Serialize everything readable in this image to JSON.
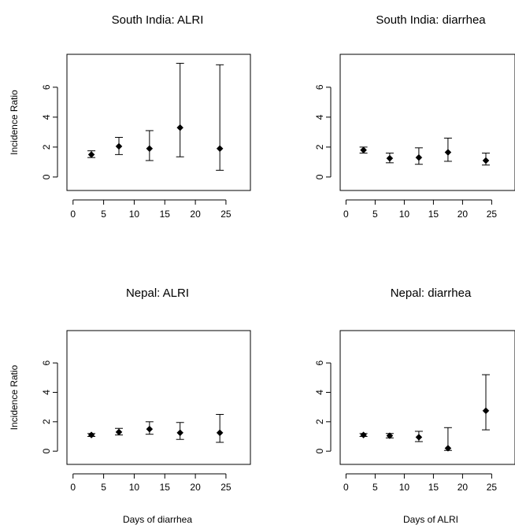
{
  "chart_data": [
    {
      "type": "scatter",
      "title": "South India: ALRI",
      "xlabel": "",
      "ylabel": "Incidence Ratio",
      "xlim": [
        -1,
        29
      ],
      "ylim": [
        -0.9,
        8.2
      ],
      "xticks": [
        0,
        5,
        10,
        15,
        20,
        25
      ],
      "yticks": [
        0,
        2,
        4,
        6
      ],
      "points": [
        {
          "x": 3,
          "y": 1.5,
          "lo": 1.3,
          "hi": 1.75
        },
        {
          "x": 7.5,
          "y": 2.05,
          "lo": 1.5,
          "hi": 2.65
        },
        {
          "x": 12.5,
          "y": 1.9,
          "lo": 1.1,
          "hi": 3.1
        },
        {
          "x": 17.5,
          "y": 3.3,
          "lo": 1.35,
          "hi": 7.6
        },
        {
          "x": 24,
          "y": 1.9,
          "lo": 0.45,
          "hi": 7.5
        }
      ]
    },
    {
      "type": "scatter",
      "title": "South India: diarrhea",
      "xlabel": "",
      "ylabel": "",
      "xlim": [
        -1,
        29
      ],
      "ylim": [
        -0.9,
        8.2
      ],
      "xticks": [
        0,
        5,
        10,
        15,
        20,
        25
      ],
      "yticks": [
        0,
        2,
        4,
        6
      ],
      "points": [
        {
          "x": 3,
          "y": 1.8,
          "lo": 1.6,
          "hi": 2.0
        },
        {
          "x": 7.5,
          "y": 1.25,
          "lo": 0.95,
          "hi": 1.6
        },
        {
          "x": 12.5,
          "y": 1.3,
          "lo": 0.85,
          "hi": 1.95
        },
        {
          "x": 17.5,
          "y": 1.65,
          "lo": 1.05,
          "hi": 2.6
        },
        {
          "x": 24,
          "y": 1.1,
          "lo": 0.8,
          "hi": 1.6
        }
      ]
    },
    {
      "type": "scatter",
      "title": "Nepal: ALRI",
      "xlabel": "Days of diarrhea",
      "ylabel": "Incidence Ratio",
      "xlim": [
        -1,
        29
      ],
      "ylim": [
        -0.9,
        8.2
      ],
      "xticks": [
        0,
        5,
        10,
        15,
        20,
        25
      ],
      "yticks": [
        0,
        2,
        4,
        6
      ],
      "points": [
        {
          "x": 3,
          "y": 1.1,
          "lo": 1.0,
          "hi": 1.2
        },
        {
          "x": 7.5,
          "y": 1.3,
          "lo": 1.1,
          "hi": 1.55
        },
        {
          "x": 12.5,
          "y": 1.5,
          "lo": 1.15,
          "hi": 2.0
        },
        {
          "x": 17.5,
          "y": 1.25,
          "lo": 0.8,
          "hi": 1.95
        },
        {
          "x": 24,
          "y": 1.25,
          "lo": 0.6,
          "hi": 2.5
        }
      ]
    },
    {
      "type": "scatter",
      "title": "Nepal: diarrhea",
      "xlabel": "Days of ALRI",
      "ylabel": "",
      "xlim": [
        -1,
        29
      ],
      "ylim": [
        -0.9,
        8.2
      ],
      "xticks": [
        0,
        5,
        10,
        15,
        20,
        25
      ],
      "yticks": [
        0,
        2,
        4,
        6
      ],
      "points": [
        {
          "x": 3,
          "y": 1.1,
          "lo": 1.0,
          "hi": 1.2
        },
        {
          "x": 7.5,
          "y": 1.05,
          "lo": 0.9,
          "hi": 1.2
        },
        {
          "x": 12.5,
          "y": 0.95,
          "lo": 0.65,
          "hi": 1.35
        },
        {
          "x": 17.5,
          "y": 0.2,
          "lo": 0.05,
          "hi": 1.6
        },
        {
          "x": 24,
          "y": 2.75,
          "lo": 1.45,
          "hi": 5.2
        }
      ]
    }
  ]
}
